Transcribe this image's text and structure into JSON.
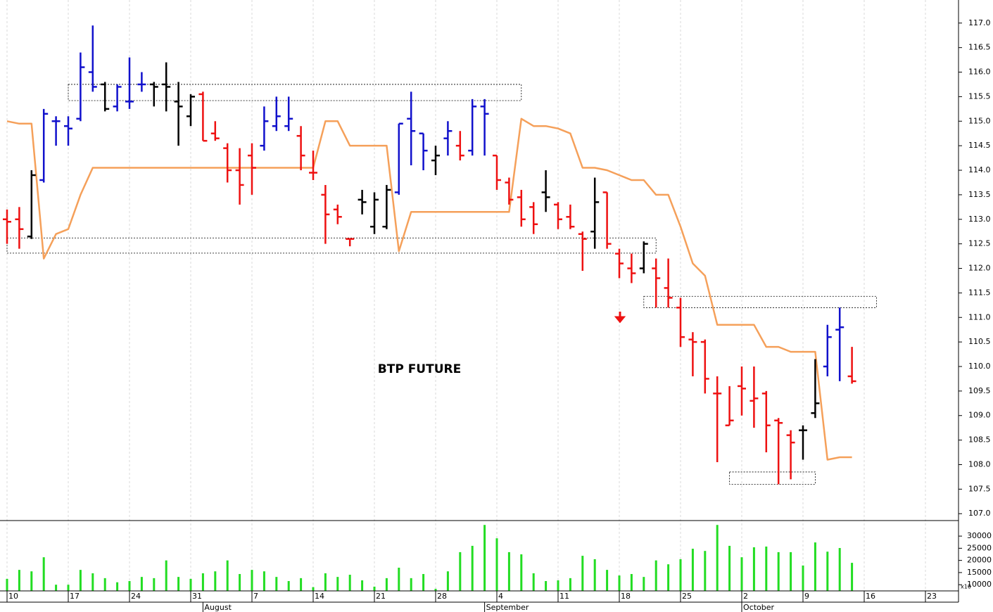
{
  "chart_data": {
    "type": "ohlc",
    "annotation": "BTP FUTURE",
    "categories": [
      "10",
      null,
      null,
      null,
      null,
      "17",
      null,
      null,
      null,
      null,
      "24",
      null,
      null,
      null,
      null,
      "31",
      null,
      null,
      null,
      null,
      "7",
      null,
      null,
      null,
      null,
      "14",
      null,
      null,
      null,
      null,
      "21",
      null,
      null,
      null,
      null,
      "28",
      null,
      null,
      null,
      null,
      "4",
      null,
      null,
      null,
      null,
      "11",
      null,
      null,
      null,
      null,
      "18",
      null,
      null,
      null,
      null,
      "25",
      null,
      null,
      null,
      null,
      "2",
      null,
      null,
      null,
      null,
      "9",
      null,
      null,
      null,
      null,
      "16",
      null,
      null,
      null,
      null,
      "23",
      null,
      null
    ],
    "months": [
      null,
      null,
      null,
      null,
      null,
      null,
      null,
      null,
      null,
      null,
      null,
      null,
      null,
      null,
      null,
      null,
      "August",
      null,
      null,
      null,
      null,
      null,
      null,
      null,
      null,
      null,
      null,
      null,
      null,
      null,
      null,
      null,
      null,
      null,
      null,
      null,
      null,
      null,
      null,
      "September",
      null,
      null,
      null,
      null,
      null,
      null,
      null,
      null,
      null,
      null,
      null,
      null,
      null,
      null,
      null,
      null,
      null,
      null,
      null,
      null,
      "October",
      null,
      null,
      null,
      null,
      null,
      null,
      null,
      null,
      null,
      null,
      null,
      null,
      null,
      null,
      null,
      null,
      null
    ],
    "ylim": [
      106.86,
      117.47
    ],
    "yticks": [
      {
        "value": 107,
        "label": "107.0"
      },
      107.5,
      {
        "value": 108,
        "label": "108.0"
      },
      108.5,
      {
        "value": 109,
        "label": "109.0"
      },
      109.5,
      {
        "value": 110,
        "label": "110.0"
      },
      110.5,
      {
        "value": 111,
        "label": "111.0"
      },
      111.5,
      {
        "value": 112,
        "label": "112.0"
      },
      112.5,
      {
        "value": 113,
        "label": "113.0"
      },
      113.5,
      {
        "value": 114,
        "label": "114.0"
      },
      114.5,
      {
        "value": 115,
        "label": "115.0"
      },
      115.5,
      {
        "value": 116,
        "label": "116.0"
      },
      116.5,
      {
        "value": 117,
        "label": "117.0"
      }
    ],
    "grid": true,
    "palette": {
      "r": "#ee1111",
      "b": "#1111cc",
      "k": "#000000"
    },
    "ohlc": {
      "open": [
        113.0,
        113.0,
        112.65,
        113.8,
        115.0,
        114.9,
        115.05,
        116.0,
        115.75,
        115.3,
        115.4,
        115.75,
        115.75,
        115.75,
        115.4,
        115.1,
        115.55,
        114.75,
        114.45,
        114.0,
        114.3,
        114.5,
        114.9,
        114.9,
        114.7,
        113.95,
        113.5,
        113.2,
        112.6,
        113.4,
        112.85,
        112.85,
        113.55,
        115.05,
        114.75,
        114.2,
        114.65,
        114.5,
        114.4,
        115.3,
        114.3,
        113.75,
        113.45,
        113.25,
        113.55,
        113.3,
        113.05,
        112.7,
        112.75,
        113.55,
        112.3,
        112.0,
        112.0,
        112.0,
        111.6,
        111.2,
        110.55,
        110.5,
        109.45,
        108.8,
        109.6,
        109.3,
        109.45,
        108.9,
        108.6,
        108.7,
        109.05,
        110.0,
        110.75,
        109.8,
        null,
        null,
        null,
        null,
        null,
        null,
        null,
        null
      ],
      "high": [
        113.2,
        113.25,
        114.0,
        115.25,
        115.1,
        115.1,
        116.4,
        116.95,
        115.8,
        115.75,
        116.3,
        116.0,
        115.8,
        116.2,
        115.8,
        115.55,
        115.6,
        115.0,
        114.55,
        114.45,
        114.55,
        115.3,
        115.5,
        115.5,
        114.9,
        114.4,
        113.7,
        113.3,
        112.6,
        113.6,
        113.55,
        113.7,
        114.95,
        115.6,
        114.75,
        114.5,
        115.0,
        114.8,
        115.45,
        115.45,
        114.3,
        113.85,
        113.6,
        113.35,
        114.0,
        113.35,
        113.3,
        112.75,
        113.85,
        113.55,
        112.4,
        112.3,
        112.55,
        112.2,
        112.2,
        111.4,
        110.7,
        110.55,
        109.8,
        109.6,
        110.0,
        110.0,
        109.5,
        108.95,
        108.7,
        108.8,
        110.15,
        110.85,
        111.2,
        110.4,
        null,
        null,
        null,
        null,
        null,
        null,
        null,
        null
      ],
      "low": [
        112.5,
        112.4,
        112.6,
        113.75,
        114.5,
        114.5,
        115.0,
        115.6,
        115.2,
        115.2,
        115.25,
        115.6,
        115.3,
        115.2,
        114.5,
        114.9,
        114.6,
        114.6,
        113.75,
        113.3,
        113.5,
        114.4,
        114.8,
        114.8,
        114.0,
        113.8,
        112.5,
        112.9,
        112.45,
        113.1,
        112.7,
        112.8,
        113.5,
        114.1,
        114.0,
        113.9,
        114.3,
        114.2,
        114.3,
        114.3,
        113.6,
        113.3,
        112.85,
        112.7,
        113.15,
        112.8,
        112.8,
        111.95,
        112.4,
        112.4,
        111.8,
        111.7,
        111.9,
        111.2,
        111.2,
        110.4,
        109.8,
        109.45,
        108.05,
        108.8,
        109.0,
        108.75,
        108.25,
        107.6,
        107.7,
        108.1,
        108.95,
        109.8,
        109.7,
        109.65,
        null,
        null,
        null,
        null,
        null,
        null,
        null,
        null
      ],
      "close": [
        112.95,
        112.8,
        113.9,
        115.15,
        115.0,
        114.85,
        116.1,
        115.7,
        115.25,
        115.7,
        115.4,
        115.75,
        115.7,
        115.7,
        115.3,
        115.5,
        114.6,
        114.65,
        114.0,
        113.7,
        114.05,
        115.0,
        115.1,
        115.05,
        114.3,
        113.95,
        113.1,
        113.05,
        112.6,
        113.35,
        113.4,
        113.6,
        114.95,
        114.8,
        114.4,
        114.3,
        114.8,
        114.3,
        115.3,
        115.15,
        113.8,
        113.4,
        113.0,
        112.9,
        113.45,
        113.0,
        112.85,
        112.6,
        113.35,
        112.5,
        112.1,
        111.9,
        112.5,
        111.8,
        111.4,
        110.6,
        110.5,
        109.75,
        109.45,
        108.9,
        109.55,
        109.35,
        108.8,
        108.85,
        108.45,
        108.7,
        109.25,
        110.6,
        110.8,
        109.7,
        null,
        null,
        null,
        null,
        null,
        null,
        null,
        null
      ],
      "colors": [
        "r",
        "r",
        "k",
        "b",
        "b",
        "b",
        "b",
        "b",
        "k",
        "b",
        "b",
        "b",
        "k",
        "k",
        "k",
        "k",
        "r",
        "r",
        "r",
        "r",
        "r",
        "b",
        "b",
        "b",
        "r",
        "r",
        "r",
        "r",
        "r",
        "k",
        "k",
        "k",
        "b",
        "b",
        "b",
        "k",
        "b",
        "r",
        "b",
        "b",
        "r",
        "r",
        "r",
        "r",
        "k",
        "r",
        "r",
        "r",
        "k",
        "r",
        "r",
        "r",
        "k",
        "r",
        "r",
        "r",
        "r",
        "r",
        "r",
        "r",
        "r",
        "r",
        "r",
        "r",
        "r",
        "k",
        "k",
        "b",
        "b",
        "r",
        null,
        null,
        null,
        null,
        null,
        null,
        null,
        null
      ]
    },
    "signal_line": {
      "color": "#f5a05a",
      "values": [
        115.0,
        114.95,
        114.95,
        112.2,
        112.7,
        112.8,
        113.5,
        114.05,
        114.05,
        114.05,
        114.05,
        114.05,
        114.05,
        114.05,
        114.05,
        114.05,
        114.05,
        114.05,
        114.05,
        114.05,
        114.05,
        114.05,
        114.05,
        114.05,
        114.05,
        114.05,
        115.0,
        115.0,
        114.5,
        114.5,
        114.5,
        114.5,
        112.35,
        113.15,
        113.15,
        113.15,
        113.15,
        113.15,
        113.15,
        113.15,
        113.15,
        113.15,
        115.05,
        114.9,
        114.9,
        114.85,
        114.75,
        114.05,
        114.05,
        114.0,
        113.9,
        113.8,
        113.8,
        113.5,
        113.5,
        112.85,
        112.1,
        111.85,
        110.85,
        110.85,
        110.85,
        110.85,
        110.4,
        110.4,
        110.3,
        110.3,
        110.3,
        108.1,
        108.15,
        108.15,
        null,
        null,
        null,
        null,
        null,
        null,
        null,
        null
      ]
    },
    "zones": [
      {
        "start": 5,
        "end": 42,
        "low": 115.42,
        "high": 115.75
      },
      {
        "start": 0,
        "end": 53,
        "low": 112.31,
        "high": 112.62
      },
      {
        "start": 52,
        "end": 71,
        "low": 111.2,
        "high": 111.43
      },
      {
        "start": 59,
        "end": 66,
        "low": 107.6,
        "high": 107.85
      }
    ],
    "volume": {
      "color": "#22dd22",
      "unit_label": "x10",
      "ylim": [
        7450,
        36400
      ],
      "yticks": [
        10000,
        15000,
        20000,
        25000,
        30000
      ],
      "values": [
        12400,
        16100,
        15500,
        21300,
        10000,
        10000,
        16100,
        14700,
        12700,
        11000,
        11500,
        13200,
        12700,
        20000,
        13200,
        12400,
        14700,
        15500,
        20000,
        14400,
        16100,
        15500,
        13200,
        11500,
        12700,
        9000,
        14700,
        13200,
        14100,
        11800,
        9200,
        12700,
        17000,
        12700,
        14400,
        8300,
        15500,
        23400,
        26000,
        34600,
        29100,
        23400,
        22500,
        14700,
        11500,
        11800,
        12700,
        21900,
        20500,
        16100,
        13800,
        14400,
        13200,
        20000,
        18400,
        20500,
        24800,
        23900,
        34600,
        26000,
        21300,
        25400,
        25700,
        23400,
        23400,
        17900,
        27400,
        23600,
        25100,
        19000,
        null,
        null,
        null,
        null,
        null,
        null,
        null,
        null
      ]
    }
  }
}
